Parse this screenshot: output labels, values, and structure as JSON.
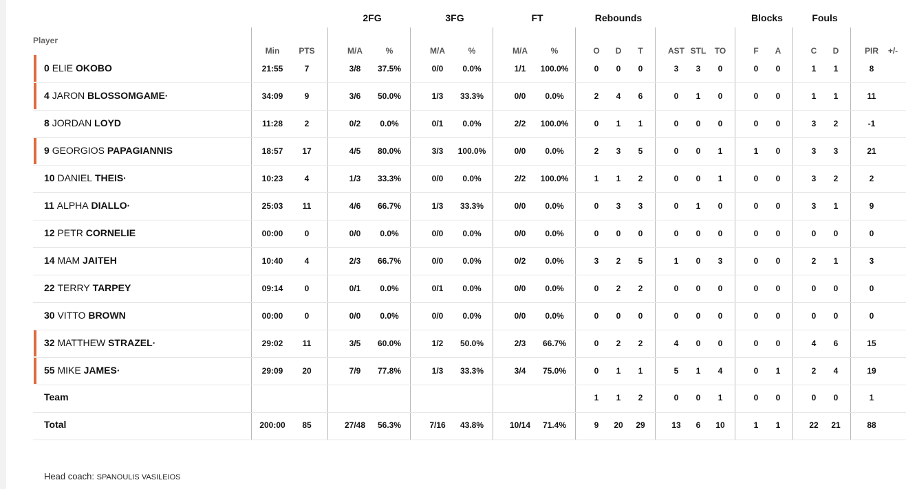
{
  "headers": {
    "player": "Player",
    "groups": {
      "fg2": "2FG",
      "fg3": "3FG",
      "ft": "FT",
      "reb": "Rebounds",
      "blk": "Blocks",
      "fouls": "Fouls"
    },
    "sub": {
      "min": "Min",
      "pts": "PTS",
      "fg2_ma": "M/A",
      "fg2_pct": "%",
      "fg3_ma": "M/A",
      "fg3_pct": "%",
      "ft_ma": "M/A",
      "ft_pct": "%",
      "o": "O",
      "d": "D",
      "t": "T",
      "ast": "AST",
      "stl": "STL",
      "to": "TO",
      "bf": "F",
      "ba": "A",
      "fc": "C",
      "fd": "D",
      "pir": "PIR",
      "pm": "+/-"
    }
  },
  "players": [
    {
      "num": "0",
      "first": "ELIE",
      "last": "OKOBO",
      "starter": true,
      "min": "21:55",
      "pts": "7",
      "fg2_ma": "3/8",
      "fg2_pct": "37.5%",
      "fg3_ma": "0/0",
      "fg3_pct": "0.0%",
      "ft_ma": "1/1",
      "ft_pct": "100.0%",
      "o": "0",
      "d": "0",
      "t": "0",
      "ast": "3",
      "stl": "3",
      "to": "0",
      "bf": "0",
      "ba": "0",
      "fc": "1",
      "fd": "1",
      "pir": "8",
      "pm": ""
    },
    {
      "num": "4",
      "first": "JARON",
      "last": "BLOSSOMGAME·",
      "starter": true,
      "min": "34:09",
      "pts": "9",
      "fg2_ma": "3/6",
      "fg2_pct": "50.0%",
      "fg3_ma": "1/3",
      "fg3_pct": "33.3%",
      "ft_ma": "0/0",
      "ft_pct": "0.0%",
      "o": "2",
      "d": "4",
      "t": "6",
      "ast": "0",
      "stl": "1",
      "to": "0",
      "bf": "0",
      "ba": "0",
      "fc": "1",
      "fd": "1",
      "pir": "11",
      "pm": ""
    },
    {
      "num": "8",
      "first": "JORDAN",
      "last": "LOYD",
      "starter": false,
      "min": "11:28",
      "pts": "2",
      "fg2_ma": "0/2",
      "fg2_pct": "0.0%",
      "fg3_ma": "0/1",
      "fg3_pct": "0.0%",
      "ft_ma": "2/2",
      "ft_pct": "100.0%",
      "o": "0",
      "d": "1",
      "t": "1",
      "ast": "0",
      "stl": "0",
      "to": "0",
      "bf": "0",
      "ba": "0",
      "fc": "3",
      "fd": "2",
      "pir": "-1",
      "pm": ""
    },
    {
      "num": "9",
      "first": "GEORGIOS",
      "last": "PAPAGIANNIS",
      "starter": true,
      "min": "18:57",
      "pts": "17",
      "fg2_ma": "4/5",
      "fg2_pct": "80.0%",
      "fg3_ma": "3/3",
      "fg3_pct": "100.0%",
      "ft_ma": "0/0",
      "ft_pct": "0.0%",
      "o": "2",
      "d": "3",
      "t": "5",
      "ast": "0",
      "stl": "0",
      "to": "1",
      "bf": "1",
      "ba": "0",
      "fc": "3",
      "fd": "3",
      "pir": "21",
      "pm": ""
    },
    {
      "num": "10",
      "first": "DANIEL",
      "last": "THEIS·",
      "starter": false,
      "min": "10:23",
      "pts": "4",
      "fg2_ma": "1/3",
      "fg2_pct": "33.3%",
      "fg3_ma": "0/0",
      "fg3_pct": "0.0%",
      "ft_ma": "2/2",
      "ft_pct": "100.0%",
      "o": "1",
      "d": "1",
      "t": "2",
      "ast": "0",
      "stl": "0",
      "to": "1",
      "bf": "0",
      "ba": "0",
      "fc": "3",
      "fd": "2",
      "pir": "2",
      "pm": ""
    },
    {
      "num": "11",
      "first": "ALPHA",
      "last": "DIALLO·",
      "starter": false,
      "min": "25:03",
      "pts": "11",
      "fg2_ma": "4/6",
      "fg2_pct": "66.7%",
      "fg3_ma": "1/3",
      "fg3_pct": "33.3%",
      "ft_ma": "0/0",
      "ft_pct": "0.0%",
      "o": "0",
      "d": "3",
      "t": "3",
      "ast": "0",
      "stl": "1",
      "to": "0",
      "bf": "0",
      "ba": "0",
      "fc": "3",
      "fd": "1",
      "pir": "9",
      "pm": ""
    },
    {
      "num": "12",
      "first": "PETR",
      "last": "CORNELIE",
      "starter": false,
      "min": "00:00",
      "pts": "0",
      "fg2_ma": "0/0",
      "fg2_pct": "0.0%",
      "fg3_ma": "0/0",
      "fg3_pct": "0.0%",
      "ft_ma": "0/0",
      "ft_pct": "0.0%",
      "o": "0",
      "d": "0",
      "t": "0",
      "ast": "0",
      "stl": "0",
      "to": "0",
      "bf": "0",
      "ba": "0",
      "fc": "0",
      "fd": "0",
      "pir": "0",
      "pm": ""
    },
    {
      "num": "14",
      "first": "MAM",
      "last": "JAITEH",
      "starter": false,
      "min": "10:40",
      "pts": "4",
      "fg2_ma": "2/3",
      "fg2_pct": "66.7%",
      "fg3_ma": "0/0",
      "fg3_pct": "0.0%",
      "ft_ma": "0/2",
      "ft_pct": "0.0%",
      "o": "3",
      "d": "2",
      "t": "5",
      "ast": "1",
      "stl": "0",
      "to": "3",
      "bf": "0",
      "ba": "0",
      "fc": "2",
      "fd": "1",
      "pir": "3",
      "pm": ""
    },
    {
      "num": "22",
      "first": "TERRY",
      "last": "TARPEY",
      "starter": false,
      "min": "09:14",
      "pts": "0",
      "fg2_ma": "0/1",
      "fg2_pct": "0.0%",
      "fg3_ma": "0/1",
      "fg3_pct": "0.0%",
      "ft_ma": "0/0",
      "ft_pct": "0.0%",
      "o": "0",
      "d": "2",
      "t": "2",
      "ast": "0",
      "stl": "0",
      "to": "0",
      "bf": "0",
      "ba": "0",
      "fc": "0",
      "fd": "0",
      "pir": "0",
      "pm": ""
    },
    {
      "num": "30",
      "first": "VITTO",
      "last": "BROWN",
      "starter": false,
      "min": "00:00",
      "pts": "0",
      "fg2_ma": "0/0",
      "fg2_pct": "0.0%",
      "fg3_ma": "0/0",
      "fg3_pct": "0.0%",
      "ft_ma": "0/0",
      "ft_pct": "0.0%",
      "o": "0",
      "d": "0",
      "t": "0",
      "ast": "0",
      "stl": "0",
      "to": "0",
      "bf": "0",
      "ba": "0",
      "fc": "0",
      "fd": "0",
      "pir": "0",
      "pm": ""
    },
    {
      "num": "32",
      "first": "MATTHEW",
      "last": "STRAZEL·",
      "starter": true,
      "min": "29:02",
      "pts": "11",
      "fg2_ma": "3/5",
      "fg2_pct": "60.0%",
      "fg3_ma": "1/2",
      "fg3_pct": "50.0%",
      "ft_ma": "2/3",
      "ft_pct": "66.7%",
      "o": "0",
      "d": "2",
      "t": "2",
      "ast": "4",
      "stl": "0",
      "to": "0",
      "bf": "0",
      "ba": "0",
      "fc": "4",
      "fd": "6",
      "pir": "15",
      "pm": ""
    },
    {
      "num": "55",
      "first": "MIKE",
      "last": "JAMES·",
      "starter": true,
      "min": "29:09",
      "pts": "20",
      "fg2_ma": "7/9",
      "fg2_pct": "77.8%",
      "fg3_ma": "1/3",
      "fg3_pct": "33.3%",
      "ft_ma": "3/4",
      "ft_pct": "75.0%",
      "o": "0",
      "d": "1",
      "t": "1",
      "ast": "5",
      "stl": "1",
      "to": "4",
      "bf": "0",
      "ba": "1",
      "fc": "2",
      "fd": "4",
      "pir": "19",
      "pm": ""
    }
  ],
  "team": {
    "label": "Team",
    "min": "",
    "pts": "",
    "fg2_ma": "",
    "fg2_pct": "",
    "fg3_ma": "",
    "fg3_pct": "",
    "ft_ma": "",
    "ft_pct": "",
    "o": "1",
    "d": "1",
    "t": "2",
    "ast": "0",
    "stl": "0",
    "to": "1",
    "bf": "0",
    "ba": "0",
    "fc": "0",
    "fd": "0",
    "pir": "1",
    "pm": ""
  },
  "total": {
    "label": "Total",
    "min": "200:00",
    "pts": "85",
    "fg2_ma": "27/48",
    "fg2_pct": "56.3%",
    "fg3_ma": "7/16",
    "fg3_pct": "43.8%",
    "ft_ma": "10/14",
    "ft_pct": "71.4%",
    "o": "9",
    "d": "20",
    "t": "29",
    "ast": "13",
    "stl": "6",
    "to": "10",
    "bf": "1",
    "ba": "1",
    "fc": "22",
    "fd": "21",
    "pir": "88",
    "pm": ""
  },
  "coach": {
    "label": "Head coach:",
    "name": "SPANOULIS VASILEIOS"
  },
  "colors": {
    "starter_marker": "#e06b3c",
    "divider": "#b8b8b8",
    "row_line": "#e6e6e6"
  }
}
